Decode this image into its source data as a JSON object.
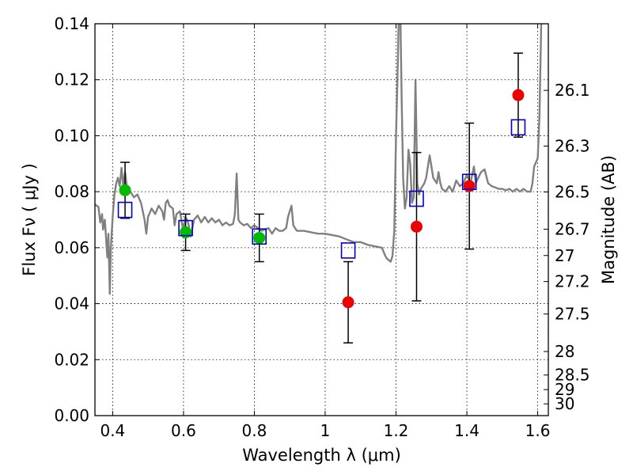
{
  "chart_data": {
    "type": "scatter",
    "xlabel": "Wavelength  λ (μm)",
    "ylabel": "Flux  Fν  ( μJy )",
    "ylabel_right": "Magnitude (AB)",
    "xlim": [
      0.35,
      1.63
    ],
    "ylim": [
      0.0,
      0.14
    ],
    "grid": true,
    "x_ticks": [
      {
        "v": 0.4,
        "label": "0.4"
      },
      {
        "v": 0.6,
        "label": "0.6"
      },
      {
        "v": 0.8,
        "label": "0.8"
      },
      {
        "v": 1.0,
        "label": "1"
      },
      {
        "v": 1.2,
        "label": "1.2"
      },
      {
        "v": 1.4,
        "label": "1.4"
      },
      {
        "v": 1.6,
        "label": "1.6"
      }
    ],
    "y_ticks": [
      {
        "v": 0.0,
        "label": "0.00"
      },
      {
        "v": 0.02,
        "label": "0.02"
      },
      {
        "v": 0.04,
        "label": "0.04"
      },
      {
        "v": 0.06,
        "label": "0.06"
      },
      {
        "v": 0.08,
        "label": "0.08"
      },
      {
        "v": 0.1,
        "label": "0.10"
      },
      {
        "v": 0.12,
        "label": "0.12"
      },
      {
        "v": 0.14,
        "label": "0.14"
      }
    ],
    "right_ticks": [
      {
        "flux": 0.1162,
        "label": "26.1"
      },
      {
        "flux": 0.0963,
        "label": "26.3"
      },
      {
        "flux": 0.0799,
        "label": "26.5"
      },
      {
        "flux": 0.0666,
        "label": "26.7"
      },
      {
        "flux": 0.0572,
        "label": "27"
      },
      {
        "flux": 0.0479,
        "label": "27.2"
      },
      {
        "flux": 0.0363,
        "label": "27.5"
      },
      {
        "flux": 0.0229,
        "label": "28"
      },
      {
        "flux": 0.0145,
        "label": "28.5"
      },
      {
        "flux": 0.0093,
        "label": "29"
      },
      {
        "flux": 0.0042,
        "label": "30"
      }
    ],
    "series": [
      {
        "kind": "line",
        "color": "#808080",
        "points": [
          [
            0.35,
            0.0755
          ],
          [
            0.36,
            0.0745
          ],
          [
            0.365,
            0.069
          ],
          [
            0.37,
            0.072
          ],
          [
            0.373,
            0.0665
          ],
          [
            0.378,
            0.07
          ],
          [
            0.381,
            0.064
          ],
          [
            0.385,
            0.0565
          ],
          [
            0.388,
            0.065
          ],
          [
            0.392,
            0.0435
          ],
          [
            0.395,
            0.06
          ],
          [
            0.4,
            0.071
          ],
          [
            0.405,
            0.079
          ],
          [
            0.41,
            0.083
          ],
          [
            0.415,
            0.085
          ],
          [
            0.42,
            0.082
          ],
          [
            0.425,
            0.0885
          ],
          [
            0.43,
            0.082
          ],
          [
            0.435,
            0.087
          ],
          [
            0.44,
            0.082
          ],
          [
            0.45,
            0.08
          ],
          [
            0.46,
            0.078
          ],
          [
            0.47,
            0.079
          ],
          [
            0.48,
            0.076
          ],
          [
            0.49,
            0.07
          ],
          [
            0.495,
            0.065
          ],
          [
            0.5,
            0.071
          ],
          [
            0.51,
            0.074
          ],
          [
            0.52,
            0.072
          ],
          [
            0.53,
            0.075
          ],
          [
            0.54,
            0.073
          ],
          [
            0.545,
            0.07
          ],
          [
            0.55,
            0.076
          ],
          [
            0.555,
            0.077
          ],
          [
            0.56,
            0.075
          ],
          [
            0.57,
            0.074
          ],
          [
            0.575,
            0.068
          ],
          [
            0.58,
            0.072
          ],
          [
            0.59,
            0.073
          ],
          [
            0.595,
            0.069
          ],
          [
            0.6,
            0.066
          ],
          [
            0.605,
            0.071
          ],
          [
            0.61,
            0.07
          ],
          [
            0.615,
            0.068
          ],
          [
            0.62,
            0.064
          ],
          [
            0.63,
            0.07
          ],
          [
            0.64,
            0.0715
          ],
          [
            0.65,
            0.069
          ],
          [
            0.66,
            0.071
          ],
          [
            0.67,
            0.069
          ],
          [
            0.68,
            0.0705
          ],
          [
            0.69,
            0.069
          ],
          [
            0.7,
            0.07
          ],
          [
            0.71,
            0.068
          ],
          [
            0.72,
            0.069
          ],
          [
            0.73,
            0.068
          ],
          [
            0.74,
            0.0685
          ],
          [
            0.745,
            0.072
          ],
          [
            0.75,
            0.0865
          ],
          [
            0.755,
            0.07
          ],
          [
            0.76,
            0.069
          ],
          [
            0.77,
            0.068
          ],
          [
            0.78,
            0.0685
          ],
          [
            0.79,
            0.067
          ],
          [
            0.8,
            0.068
          ],
          [
            0.81,
            0.067
          ],
          [
            0.82,
            0.066
          ],
          [
            0.83,
            0.0665
          ],
          [
            0.84,
            0.067
          ],
          [
            0.85,
            0.065
          ],
          [
            0.86,
            0.067
          ],
          [
            0.87,
            0.066
          ],
          [
            0.88,
            0.066
          ],
          [
            0.89,
            0.067
          ],
          [
            0.895,
            0.071
          ],
          [
            0.905,
            0.075
          ],
          [
            0.91,
            0.068
          ],
          [
            0.92,
            0.066
          ],
          [
            0.94,
            0.066
          ],
          [
            0.96,
            0.0655
          ],
          [
            0.98,
            0.065
          ],
          [
            1.0,
            0.065
          ],
          [
            1.02,
            0.0645
          ],
          [
            1.04,
            0.064
          ],
          [
            1.06,
            0.063
          ],
          [
            1.08,
            0.062
          ],
          [
            1.1,
            0.062
          ],
          [
            1.12,
            0.061
          ],
          [
            1.14,
            0.0605
          ],
          [
            1.16,
            0.06
          ],
          [
            1.17,
            0.057
          ],
          [
            1.175,
            0.056
          ],
          [
            1.185,
            0.055
          ],
          [
            1.19,
            0.057
          ],
          [
            1.195,
            0.066
          ],
          [
            1.2,
            0.1
          ],
          [
            1.205,
            0.125
          ],
          [
            1.208,
            0.145
          ],
          [
            1.212,
            0.145
          ],
          [
            1.216,
            0.112
          ],
          [
            1.22,
            0.085
          ],
          [
            1.225,
            0.074
          ],
          [
            1.23,
            0.078
          ],
          [
            1.235,
            0.095
          ],
          [
            1.24,
            0.09
          ],
          [
            1.245,
            0.076
          ],
          [
            1.25,
            0.078
          ],
          [
            1.255,
            0.12
          ],
          [
            1.26,
            0.083
          ],
          [
            1.265,
            0.079
          ],
          [
            1.27,
            0.081
          ],
          [
            1.28,
            0.083
          ],
          [
            1.285,
            0.085
          ],
          [
            1.295,
            0.093
          ],
          [
            1.305,
            0.085
          ],
          [
            1.315,
            0.083
          ],
          [
            1.32,
            0.087
          ],
          [
            1.325,
            0.083
          ],
          [
            1.33,
            0.081
          ],
          [
            1.34,
            0.08
          ],
          [
            1.35,
            0.082
          ],
          [
            1.36,
            0.08
          ],
          [
            1.37,
            0.084
          ],
          [
            1.38,
            0.082
          ],
          [
            1.39,
            0.083
          ],
          [
            1.4,
            0.086
          ],
          [
            1.41,
            0.083
          ],
          [
            1.42,
            0.089
          ],
          [
            1.425,
            0.083
          ],
          [
            1.44,
            0.087
          ],
          [
            1.45,
            0.088
          ],
          [
            1.46,
            0.083
          ],
          [
            1.47,
            0.082
          ],
          [
            1.48,
            0.0815
          ],
          [
            1.49,
            0.081
          ],
          [
            1.5,
            0.081
          ],
          [
            1.51,
            0.0805
          ],
          [
            1.52,
            0.081
          ],
          [
            1.53,
            0.08
          ],
          [
            1.54,
            0.081
          ],
          [
            1.55,
            0.08
          ],
          [
            1.56,
            0.081
          ],
          [
            1.57,
            0.08
          ],
          [
            1.58,
            0.08
          ],
          [
            1.585,
            0.083
          ],
          [
            1.59,
            0.089
          ],
          [
            1.6,
            0.092
          ],
          [
            1.605,
            0.107
          ],
          [
            1.61,
            0.14
          ],
          [
            1.615,
            0.145
          ],
          [
            1.62,
            0.145
          ]
        ]
      },
      {
        "kind": "points",
        "color": "#00bb00",
        "points": [
          {
            "x": 0.435,
            "y": 0.0805,
            "err": 0.01
          },
          {
            "x": 0.606,
            "y": 0.0655,
            "err": 0.0065
          },
          {
            "x": 0.814,
            "y": 0.0635,
            "err": 0.0085
          }
        ]
      },
      {
        "kind": "points",
        "color": "#ee0000",
        "points": [
          {
            "x": 1.065,
            "y": 0.0405,
            "err": 0.0145
          },
          {
            "x": 1.258,
            "y": 0.0675,
            "err": 0.0265
          },
          {
            "x": 1.407,
            "y": 0.082,
            "err": 0.0225
          },
          {
            "x": 1.545,
            "y": 0.1145,
            "err": 0.015
          }
        ]
      },
      {
        "kind": "squares",
        "color": "#0000cc",
        "points": [
          {
            "x": 0.435,
            "y": 0.0735
          },
          {
            "x": 0.606,
            "y": 0.067
          },
          {
            "x": 0.814,
            "y": 0.064
          },
          {
            "x": 1.065,
            "y": 0.059
          },
          {
            "x": 1.258,
            "y": 0.0775
          },
          {
            "x": 1.407,
            "y": 0.0835
          },
          {
            "x": 1.545,
            "y": 0.103
          }
        ]
      }
    ]
  }
}
